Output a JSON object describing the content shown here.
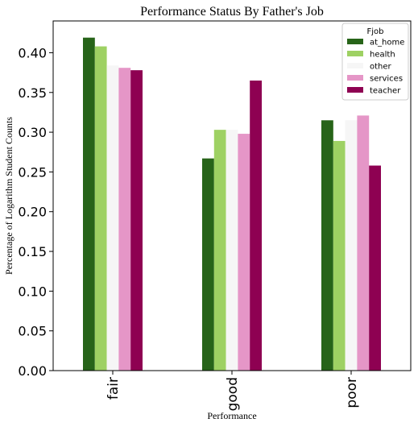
{
  "chart_data": {
    "type": "bar",
    "title": "Performance Status By Father's Job",
    "xlabel": "Performance",
    "ylabel": "Percentage of Logarithm Student Counts",
    "categories": [
      "fair",
      "good",
      "poor"
    ],
    "ylim": [
      0,
      0.44
    ],
    "yticks": [
      "0.00",
      "0.05",
      "0.10",
      "0.15",
      "0.20",
      "0.25",
      "0.30",
      "0.35",
      "0.40"
    ],
    "legend": {
      "title": "Fjob",
      "position": "top-right"
    },
    "grid": false,
    "series": [
      {
        "name": "at_home",
        "color": "#276419",
        "values": [
          0.419,
          0.267,
          0.315
        ]
      },
      {
        "name": "health",
        "color": "#9ed163",
        "values": [
          0.408,
          0.303,
          0.289
        ]
      },
      {
        "name": "other",
        "color": "#f6f6f6",
        "values": [
          0.384,
          0.303,
          0.315
        ]
      },
      {
        "name": "services",
        "color": "#e596c7",
        "values": [
          0.381,
          0.298,
          0.321
        ]
      },
      {
        "name": "teacher",
        "color": "#8e0152",
        "values": [
          0.378,
          0.365,
          0.258
        ]
      }
    ]
  }
}
